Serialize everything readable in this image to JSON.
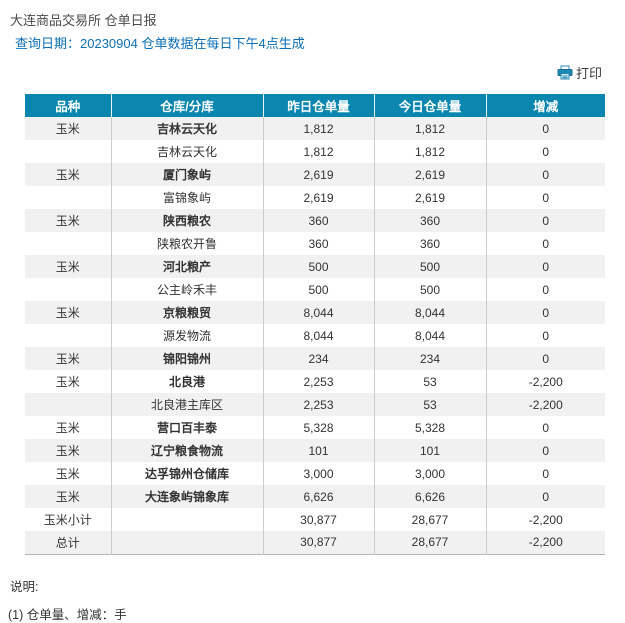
{
  "page": {
    "title": "大连商品交易所 仓单日报",
    "query_label": "查询日期：",
    "query_value": "20230904 仓单数据在每日下午4点生成",
    "print_label": "打印"
  },
  "colors": {
    "header_bg": "#0B86AE",
    "query_text": "#0D6FB8",
    "alt_row_bg": "#F1F1F1",
    "text": "#333333"
  },
  "table": {
    "columns": [
      "品种",
      "仓库/分库",
      "昨日仓单量",
      "今日仓单量",
      "增减"
    ],
    "rows": [
      {
        "variety": "玉米",
        "warehouse": "吉林云天化",
        "bold": true,
        "yesterday": "1,812",
        "today": "1,812",
        "change": "0"
      },
      {
        "variety": "",
        "warehouse": "吉林云天化",
        "bold": false,
        "yesterday": "1,812",
        "today": "1,812",
        "change": "0"
      },
      {
        "variety": "玉米",
        "warehouse": "厦门象屿",
        "bold": true,
        "yesterday": "2,619",
        "today": "2,619",
        "change": "0"
      },
      {
        "variety": "",
        "warehouse": "富锦象屿",
        "bold": false,
        "yesterday": "2,619",
        "today": "2,619",
        "change": "0"
      },
      {
        "variety": "玉米",
        "warehouse": "陕西粮农",
        "bold": true,
        "yesterday": "360",
        "today": "360",
        "change": "0"
      },
      {
        "variety": "",
        "warehouse": "陕粮农开鲁",
        "bold": false,
        "yesterday": "360",
        "today": "360",
        "change": "0"
      },
      {
        "variety": "玉米",
        "warehouse": "河北粮产",
        "bold": true,
        "yesterday": "500",
        "today": "500",
        "change": "0"
      },
      {
        "variety": "",
        "warehouse": "公主岭禾丰",
        "bold": false,
        "yesterday": "500",
        "today": "500",
        "change": "0"
      },
      {
        "variety": "玉米",
        "warehouse": "京粮粮贸",
        "bold": true,
        "yesterday": "8,044",
        "today": "8,044",
        "change": "0"
      },
      {
        "variety": "",
        "warehouse": "源发物流",
        "bold": false,
        "yesterday": "8,044",
        "today": "8,044",
        "change": "0"
      },
      {
        "variety": "玉米",
        "warehouse": "锦阳锦州",
        "bold": true,
        "yesterday": "234",
        "today": "234",
        "change": "0"
      },
      {
        "variety": "玉米",
        "warehouse": "北良港",
        "bold": true,
        "yesterday": "2,253",
        "today": "53",
        "change": "-2,200"
      },
      {
        "variety": "",
        "warehouse": "北良港主库区",
        "bold": false,
        "yesterday": "2,253",
        "today": "53",
        "change": "-2,200"
      },
      {
        "variety": "玉米",
        "warehouse": "营口百丰泰",
        "bold": true,
        "yesterday": "5,328",
        "today": "5,328",
        "change": "0"
      },
      {
        "variety": "玉米",
        "warehouse": "辽宁粮食物流",
        "bold": true,
        "yesterday": "101",
        "today": "101",
        "change": "0"
      },
      {
        "variety": "玉米",
        "warehouse": "达孚锦州仓储库",
        "bold": true,
        "yesterday": "3,000",
        "today": "3,000",
        "change": "0"
      },
      {
        "variety": "玉米",
        "warehouse": "大连象屿锦象库",
        "bold": true,
        "yesterday": "6,626",
        "today": "6,626",
        "change": "0"
      },
      {
        "variety": "玉米小计",
        "warehouse": "",
        "bold": false,
        "yesterday": "30,877",
        "today": "28,677",
        "change": "-2,200"
      },
      {
        "variety": "总计",
        "warehouse": "",
        "bold": false,
        "yesterday": "30,877",
        "today": "28,677",
        "change": "-2,200"
      }
    ]
  },
  "notes": {
    "heading": "说明:",
    "line1": "(1) 仓单量、增减：手"
  }
}
